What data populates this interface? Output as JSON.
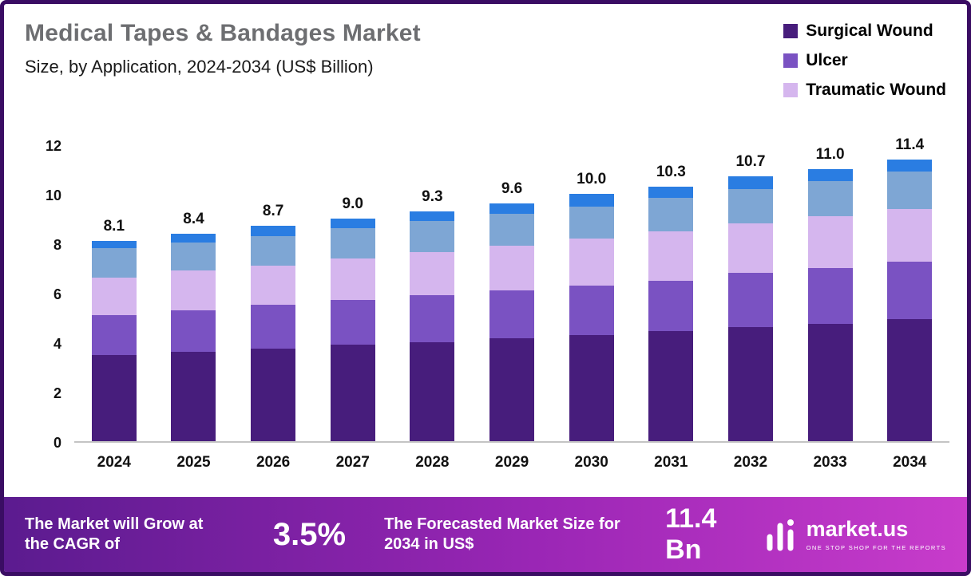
{
  "title": "Medical Tapes & Bandages Market",
  "subtitle": "Size, by Application, 2024-2034 (US$ Billion)",
  "legend": [
    {
      "label": "Surgical Wound",
      "color": "#471d7c"
    },
    {
      "label": "Ulcer",
      "color": "#7a52c2"
    },
    {
      "label": "Traumatic Wound",
      "color": "#d5b6ee"
    }
  ],
  "chart_data": {
    "type": "bar",
    "stacked": true,
    "title": "Medical Tapes & Bandages Market Size, by Application, 2024-2034 (US$ Billion)",
    "xlabel": "",
    "ylabel": "",
    "ylim": [
      0,
      12
    ],
    "yticks": [
      0,
      2,
      4,
      6,
      8,
      10,
      12
    ],
    "grid": false,
    "legend_position": "top-right",
    "categories": [
      "2024",
      "2025",
      "2026",
      "2027",
      "2028",
      "2029",
      "2030",
      "2031",
      "2032",
      "2033",
      "2034"
    ],
    "totals": [
      8.1,
      8.4,
      8.7,
      9.0,
      9.3,
      9.6,
      10.0,
      10.3,
      10.7,
      11.0,
      11.4
    ],
    "totals_labels": [
      "8.1",
      "8.4",
      "8.7",
      "9.0",
      "9.3",
      "9.6",
      "10.0",
      "10.3",
      "10.7",
      "11.0",
      "11.4"
    ],
    "series": [
      {
        "name": "Surgical Wound",
        "color": "#471d7c",
        "values": [
          3.5,
          3.6,
          3.75,
          3.9,
          4.0,
          4.15,
          4.3,
          4.45,
          4.6,
          4.75,
          4.95
        ]
      },
      {
        "name": "Ulcer",
        "color": "#7a52c2",
        "values": [
          1.6,
          1.7,
          1.75,
          1.8,
          1.9,
          1.95,
          2.0,
          2.05,
          2.2,
          2.25,
          2.3
        ]
      },
      {
        "name": "Traumatic Wound",
        "color": "#d5b6ee",
        "values": [
          1.5,
          1.6,
          1.6,
          1.7,
          1.75,
          1.8,
          1.9,
          2.0,
          2.0,
          2.1,
          2.15
        ]
      },
      {
        "name": "",
        "color": "#7ea6d4",
        "values": [
          1.2,
          1.15,
          1.2,
          1.2,
          1.25,
          1.3,
          1.3,
          1.35,
          1.4,
          1.4,
          1.5
        ]
      },
      {
        "name": "",
        "color": "#2a7de2",
        "values": [
          0.3,
          0.35,
          0.4,
          0.4,
          0.4,
          0.4,
          0.5,
          0.45,
          0.5,
          0.5,
          0.5
        ]
      }
    ]
  },
  "banner": {
    "cagr_label": "The Market will Grow at the CAGR of",
    "cagr_value": "3.5%",
    "forecast_label": "The Forecasted Market Size for 2034 in US$",
    "forecast_value": "11.4 Bn",
    "brand": "market.us",
    "brand_tagline": "ONE STOP SHOP FOR THE REPORTS"
  },
  "colors": {
    "border": "#3a0d63",
    "title_text": "#6d6e71",
    "baseline": "#c4c4c4",
    "banner_gradient_start": "#5b1b8f",
    "banner_gradient_end": "#c83ccb"
  }
}
